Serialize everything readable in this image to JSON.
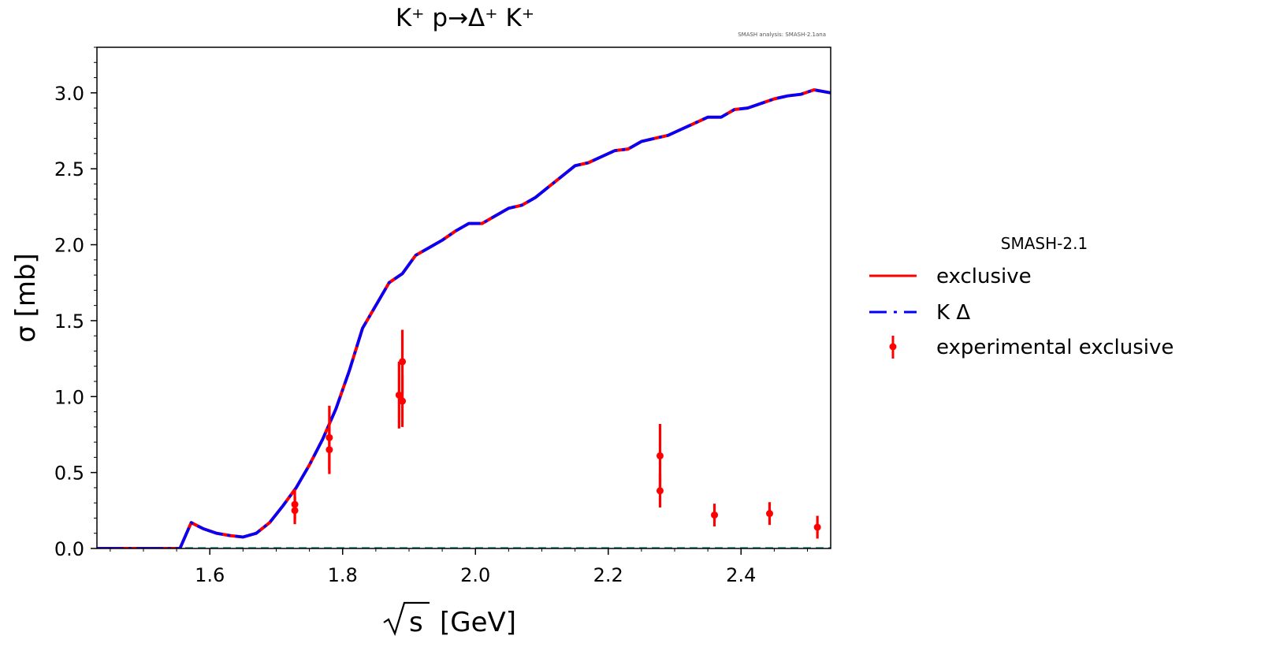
{
  "chart_data": {
    "type": "line",
    "title": "K⁺ p→Δ⁺ K⁺",
    "watermark": "SMASH analysis: SMASH-2.1ana",
    "xlabel": "[GeV]",
    "xlabel_math": "√s",
    "ylabel": "σ [mb]",
    "xlim": [
      1.43,
      2.535
    ],
    "ylim": [
      0,
      3.3
    ],
    "xticks": [
      1.6,
      1.8,
      2.0,
      2.2,
      2.4
    ],
    "xtick_labels": [
      "1.6",
      "1.8",
      "2.0",
      "2.2",
      "2.4"
    ],
    "yticks": [
      0.0,
      0.5,
      1.0,
      1.5,
      2.0,
      2.5,
      3.0
    ],
    "ytick_labels": [
      "0.0",
      "0.5",
      "1.0",
      "1.5",
      "2.0",
      "2.5",
      "3.0"
    ],
    "grid": false,
    "legend": {
      "title": "SMASH-2.1",
      "placement": "outside-right",
      "entries": [
        "exclusive",
        "K Δ",
        "experimental exclusive"
      ]
    },
    "series": [
      {
        "name": "exclusive",
        "kind": "line",
        "color": "#ff0000",
        "x": [
          1.43,
          1.555,
          1.572,
          1.59,
          1.61,
          1.63,
          1.65,
          1.67,
          1.69,
          1.71,
          1.73,
          1.75,
          1.77,
          1.79,
          1.81,
          1.83,
          1.85,
          1.87,
          1.89,
          1.91,
          1.93,
          1.95,
          1.97,
          1.99,
          2.01,
          2.03,
          2.05,
          2.07,
          2.09,
          2.11,
          2.13,
          2.15,
          2.17,
          2.19,
          2.21,
          2.23,
          2.25,
          2.27,
          2.29,
          2.31,
          2.33,
          2.35,
          2.37,
          2.39,
          2.41,
          2.43,
          2.45,
          2.47,
          2.49,
          2.51,
          2.535
        ],
        "y": [
          0.0,
          0.0,
          0.17,
          0.13,
          0.1,
          0.085,
          0.075,
          0.1,
          0.17,
          0.28,
          0.4,
          0.55,
          0.72,
          0.92,
          1.17,
          1.45,
          1.6,
          1.75,
          1.81,
          1.93,
          1.98,
          2.03,
          2.09,
          2.14,
          2.14,
          2.19,
          2.24,
          2.26,
          2.31,
          2.38,
          2.45,
          2.52,
          2.54,
          2.58,
          2.62,
          2.63,
          2.68,
          2.7,
          2.72,
          2.76,
          2.8,
          2.84,
          2.84,
          2.89,
          2.9,
          2.93,
          2.96,
          2.98,
          2.99,
          3.02,
          3.0
        ]
      },
      {
        "name": "K Δ",
        "kind": "dashed-line",
        "color": "#0000ff",
        "x": [
          1.43,
          1.555,
          1.572,
          1.59,
          1.61,
          1.63,
          1.65,
          1.67,
          1.69,
          1.71,
          1.73,
          1.75,
          1.77,
          1.79,
          1.81,
          1.83,
          1.85,
          1.87,
          1.89,
          1.91,
          1.93,
          1.95,
          1.97,
          1.99,
          2.01,
          2.03,
          2.05,
          2.07,
          2.09,
          2.11,
          2.13,
          2.15,
          2.17,
          2.19,
          2.21,
          2.23,
          2.25,
          2.27,
          2.29,
          2.31,
          2.33,
          2.35,
          2.37,
          2.39,
          2.41,
          2.43,
          2.45,
          2.47,
          2.49,
          2.51,
          2.535
        ],
        "y": [
          0.0,
          0.0,
          0.17,
          0.13,
          0.1,
          0.085,
          0.075,
          0.1,
          0.17,
          0.28,
          0.4,
          0.55,
          0.72,
          0.92,
          1.17,
          1.45,
          1.6,
          1.75,
          1.81,
          1.93,
          1.98,
          2.03,
          2.09,
          2.14,
          2.14,
          2.19,
          2.24,
          2.26,
          2.31,
          2.38,
          2.45,
          2.52,
          2.54,
          2.58,
          2.62,
          2.63,
          2.68,
          2.7,
          2.72,
          2.76,
          2.8,
          2.84,
          2.84,
          2.89,
          2.9,
          2.93,
          2.96,
          2.98,
          2.99,
          3.02,
          3.0
        ]
      },
      {
        "name": "experimental exclusive",
        "kind": "errorbar",
        "color": "#ff0000",
        "points": [
          {
            "x": 1.728,
            "y": 0.29,
            "yerr": 0.1
          },
          {
            "x": 1.728,
            "y": 0.25,
            "yerr": 0.09
          },
          {
            "x": 1.78,
            "y": 0.73,
            "yerr": 0.21
          },
          {
            "x": 1.78,
            "y": 0.65,
            "yerr": 0.16
          },
          {
            "x": 1.885,
            "y": 1.01,
            "yerr": 0.22
          },
          {
            "x": 1.89,
            "y": 1.23,
            "yerr": 0.21
          },
          {
            "x": 1.89,
            "y": 0.97,
            "yerr": 0.17
          },
          {
            "x": 2.278,
            "y": 0.61,
            "yerr": 0.21
          },
          {
            "x": 2.278,
            "y": 0.38,
            "yerr": 0.11
          },
          {
            "x": 2.36,
            "y": 0.22,
            "yerr": 0.075
          },
          {
            "x": 2.443,
            "y": 0.23,
            "yerr": 0.075
          },
          {
            "x": 2.515,
            "y": 0.14,
            "yerr": 0.075
          }
        ]
      }
    ]
  }
}
